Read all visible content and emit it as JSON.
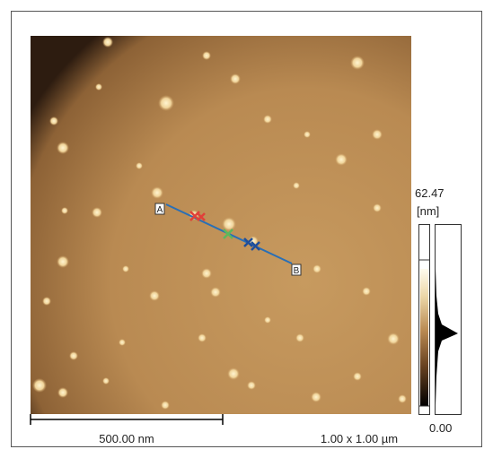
{
  "image": {
    "colorbar": {
      "max_label": "62.47",
      "unit_label": "[nm]",
      "min_label": "0.00"
    },
    "scale_bar_label": "500.00 nm",
    "scan_size_label": "1.00 x 1.00 µm",
    "profile": {
      "start_label": "A",
      "end_label": "B"
    }
  }
}
